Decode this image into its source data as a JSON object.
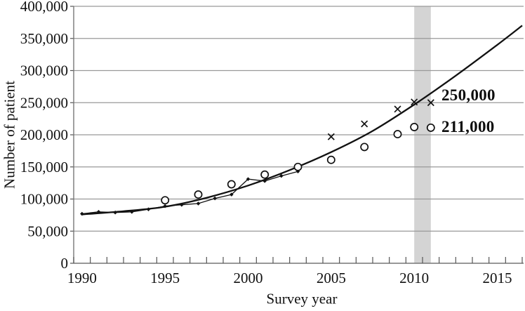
{
  "chart_data": {
    "type": "line",
    "title": "",
    "xlabel": "Survey year",
    "ylabel": "Number of patient",
    "x_axis": {
      "category_start": 1990,
      "category_end": 2017,
      "minor_tick_every_years": 1,
      "tick_years": [
        1990,
        1995,
        2000,
        2005,
        2010,
        2015
      ],
      "tick_labels": [
        "1990",
        "1995",
        "2000",
        "2005",
        "2010",
        "2015"
      ]
    },
    "y_axis": {
      "min": 0,
      "max": 400000,
      "step": 50000,
      "tick_labels": [
        "0",
        "50,000",
        "100,000",
        "150,000",
        "200,000",
        "250,000",
        "300,000",
        "350,000",
        "400,000"
      ]
    },
    "grid": "horizontal",
    "legend": "none",
    "highlight_band": {
      "from_year": 2010.5,
      "to_year": 2011.5,
      "color": "#d4d4d4"
    },
    "series": [
      {
        "name": "annual-reported-patients",
        "type": "line",
        "marker": "diamond",
        "x": [
          1990,
          1991,
          1992,
          1993,
          1994,
          1995,
          1996,
          1997,
          1998,
          1999,
          2000,
          2001,
          2002,
          2003
        ],
        "values": [
          77000,
          80000,
          79000,
          80000,
          84000,
          89000,
          91000,
          93000,
          101000,
          107000,
          131000,
          128000,
          136000,
          143000
        ]
      },
      {
        "name": "survey-estimate-circles",
        "type": "scatter",
        "marker": "circle",
        "x": [
          1995,
          1997,
          1999,
          2001,
          2003,
          2005,
          2007,
          2009,
          2010,
          2011
        ],
        "values": [
          98000,
          107000,
          123000,
          138000,
          150000,
          161000,
          181000,
          201000,
          212000,
          211000
        ]
      },
      {
        "name": "survey-estimate-crosses",
        "type": "scatter",
        "marker": "cross",
        "x": [
          2005,
          2007,
          2009,
          2010,
          2011
        ],
        "values": [
          197000,
          217000,
          240000,
          251000,
          250000
        ]
      },
      {
        "name": "fitted-trend-curve",
        "type": "smooth-line",
        "marker": "none",
        "x": [
          1990,
          1992.5,
          1995,
          1997.5,
          2000,
          2002.5,
          2005,
          2007.5,
          2010,
          2012.5,
          2015,
          2016.5
        ],
        "values": [
          76000,
          81000,
          88000,
          102000,
          121000,
          145000,
          173000,
          206000,
          247000,
          292000,
          340000,
          370000
        ]
      }
    ],
    "annotations": [
      {
        "text": "250,000",
        "refers_to": "survey-estimate-crosses",
        "anchor_year": 2011.65,
        "anchor_value": 263000
      },
      {
        "text": "211,000",
        "refers_to": "survey-estimate-circles",
        "anchor_year": 2011.65,
        "anchor_value": 213000
      }
    ],
    "colors": {
      "ink": "#111111",
      "grid": "#999999",
      "axis": "#777777",
      "tick": "#555555",
      "band": "#d4d4d4",
      "background": "#ffffff"
    }
  }
}
